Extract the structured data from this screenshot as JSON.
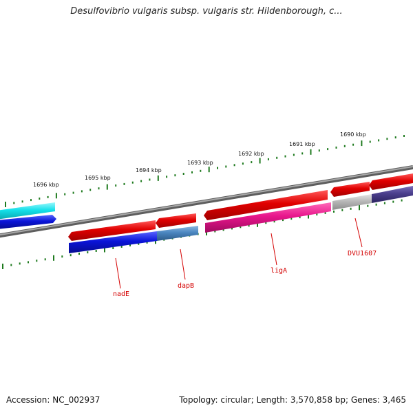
{
  "header": {
    "title": "Desulfovibrio vulgaris subsp. vulgaris str. Hildenborough, c..."
  },
  "footer": {
    "accession": "Accession: NC_002937",
    "summary": "Topology: circular; Length: 3,570,858 bp; Genes: 3,465"
  },
  "map": {
    "kbp_ticks": [
      {
        "label": "1696 kbp"
      },
      {
        "label": "1695 kbp"
      },
      {
        "label": "1694 kbp"
      },
      {
        "label": "1693 kbp"
      },
      {
        "label": "1692 kbp"
      },
      {
        "label": "1691 kbp"
      },
      {
        "label": "1690 kbp"
      }
    ],
    "gene_labels": [
      {
        "name": "nadE"
      },
      {
        "name": "dapB"
      },
      {
        "name": "ligA"
      },
      {
        "name": "DVU1607"
      }
    ],
    "colors": {
      "backbone": "#8a8a8a",
      "tick": "#1e7a1e",
      "feature_red": "#e00000",
      "feature_blue": "#0a14d8",
      "feature_cyan": "#14e0ea",
      "feature_steelblue": "#4a86c0",
      "feature_magenta": "#e8168c",
      "feature_gray": "#b8b8b8",
      "feature_navy": "#4a3e8c",
      "label": "#d40000"
    }
  }
}
